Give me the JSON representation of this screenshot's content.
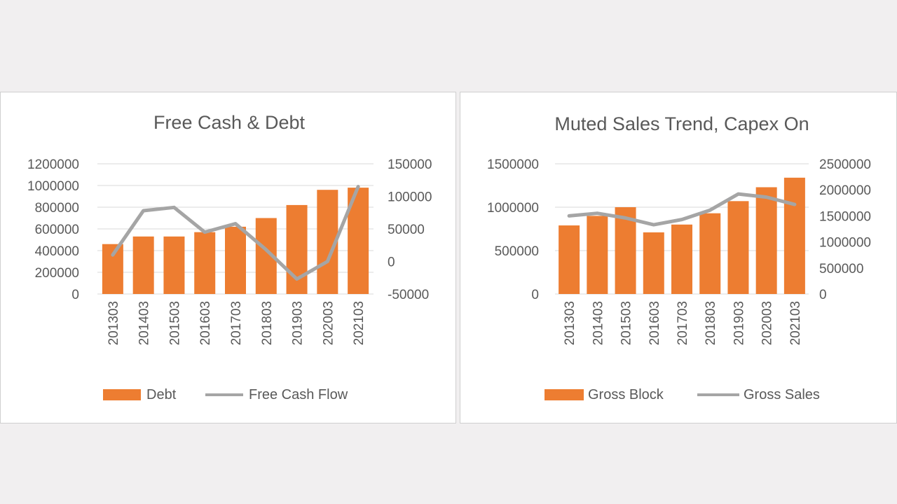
{
  "colors": {
    "bar": "#ed7d31",
    "line": "#a5a5a5",
    "grid": "#d9d9d9",
    "text": "#595959"
  },
  "chart_data": [
    {
      "type": "bar",
      "title": "Free Cash & Debt",
      "categories": [
        "201303",
        "201403",
        "201503",
        "201603",
        "201703",
        "201803",
        "201903",
        "202003",
        "202103"
      ],
      "series": [
        {
          "name": "Debt",
          "type": "bar",
          "axis": "left",
          "values": [
            460000,
            530000,
            530000,
            570000,
            620000,
            700000,
            820000,
            960000,
            980000
          ]
        },
        {
          "name": "Free Cash Flow",
          "type": "line",
          "axis": "right",
          "values": [
            10000,
            78000,
            83000,
            45000,
            58000,
            18000,
            -27000,
            0,
            115000
          ]
        }
      ],
      "y_left": {
        "min": 0,
        "max": 1200000,
        "ticks": [
          "1200000",
          "1000000",
          "800000",
          "600000",
          "400000",
          "200000",
          "0"
        ]
      },
      "y_right": {
        "min": -50000,
        "max": 150000,
        "ticks": [
          "150000",
          "100000",
          "50000",
          "0",
          "-50000"
        ]
      },
      "grid": true,
      "legend": "bottom"
    },
    {
      "type": "bar",
      "title": "Muted Sales Trend, Capex On",
      "categories": [
        "201303",
        "201403",
        "201503",
        "201603",
        "201703",
        "201803",
        "201903",
        "202003",
        "202103"
      ],
      "series": [
        {
          "name": "Gross Block",
          "type": "bar",
          "axis": "left",
          "values": [
            790000,
            900000,
            1000000,
            710000,
            800000,
            930000,
            1070000,
            1230000,
            1340000
          ]
        },
        {
          "name": "Gross Sales",
          "type": "line",
          "axis": "right",
          "values": [
            1500000,
            1550000,
            1460000,
            1330000,
            1430000,
            1610000,
            1920000,
            1860000,
            1720000
          ]
        }
      ],
      "y_left": {
        "min": 0,
        "max": 1500000,
        "ticks": [
          "1500000",
          "1000000",
          "500000",
          "0"
        ]
      },
      "y_right": {
        "min": 0,
        "max": 2500000,
        "ticks": [
          "2500000",
          "2000000",
          "1500000",
          "1000000",
          "500000",
          "0"
        ]
      },
      "grid": true,
      "legend": "bottom"
    }
  ]
}
